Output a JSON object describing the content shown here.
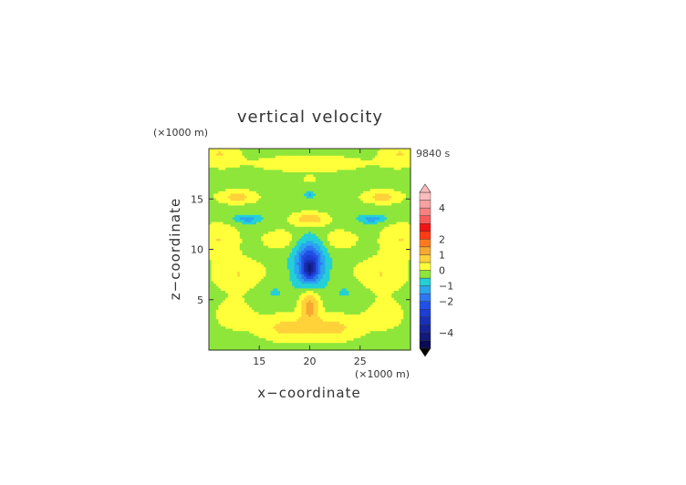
{
  "chart_data": {
    "type": "heatmap",
    "title": "vertical velocity",
    "xlabel": "x−coordinate",
    "ylabel": "z−coordinate",
    "x_unit": "(×1000 m)",
    "y_unit": "(×1000 m)",
    "time_label": "9840 s",
    "xlim": [
      10,
      30
    ],
    "ylim": [
      0,
      20
    ],
    "x_ticks": [
      15,
      20,
      25
    ],
    "y_ticks": [
      5,
      10,
      15
    ],
    "colorbar": {
      "vmin": -5,
      "vmax": 5,
      "ticks": [
        4,
        2,
        1,
        0,
        -1,
        -2,
        -4
      ],
      "levels": [
        {
          "from": -5,
          "to": -4.5,
          "color": "#0a0a55"
        },
        {
          "from": -4.5,
          "to": -4,
          "color": "#111a7a"
        },
        {
          "from": -4,
          "to": -3.5,
          "color": "#15249a"
        },
        {
          "from": -3.5,
          "to": -3,
          "color": "#1830b8"
        },
        {
          "from": -3,
          "to": -2.5,
          "color": "#1c3ed2"
        },
        {
          "from": -2.5,
          "to": -2,
          "color": "#2050e6"
        },
        {
          "from": -2,
          "to": -1.5,
          "color": "#2c78f0"
        },
        {
          "from": -1.5,
          "to": -1,
          "color": "#2aa6ee"
        },
        {
          "from": -1,
          "to": -0.5,
          "color": "#24d0d6"
        },
        {
          "from": -0.5,
          "to": 0,
          "color": "#8ee63a"
        },
        {
          "from": 0,
          "to": 0.5,
          "color": "#ffff3a"
        },
        {
          "from": 0.5,
          "to": 1,
          "color": "#ffd23a"
        },
        {
          "from": 1,
          "to": 1.5,
          "color": "#f6a830"
        },
        {
          "from": 1.5,
          "to": 2,
          "color": "#ff7a1e"
        },
        {
          "from": 2,
          "to": 2.5,
          "color": "#ff3a14"
        },
        {
          "from": 2.5,
          "to": 3,
          "color": "#f01414"
        },
        {
          "from": 3,
          "to": 3.5,
          "color": "#f65a5a"
        },
        {
          "from": 3.5,
          "to": 4,
          "color": "#f88080"
        },
        {
          "from": 4,
          "to": 4.5,
          "color": "#f9a0a0"
        },
        {
          "from": 4.5,
          "to": 5,
          "color": "#fbbcbc"
        }
      ]
    },
    "field": {
      "background": -0.3,
      "features": [
        {
          "x": 20,
          "z": 13.0,
          "sx": 1.3,
          "sz": 0.5,
          "amp": 1.2
        },
        {
          "x": 20,
          "z": 17.0,
          "sx": 0.5,
          "sz": 0.2,
          "amp": 0.7
        },
        {
          "x": 20,
          "z": 15.4,
          "sx": 0.3,
          "sz": 0.2,
          "amp": -0.9
        },
        {
          "x": 12.8,
          "z": 15.2,
          "sx": 1.5,
          "sz": 0.5,
          "amp": 1.0
        },
        {
          "x": 27.2,
          "z": 15.2,
          "sx": 1.5,
          "sz": 0.5,
          "amp": 1.0
        },
        {
          "x": 13.8,
          "z": 13.0,
          "sx": 0.9,
          "sz": 0.3,
          "amp": -1.0
        },
        {
          "x": 26.2,
          "z": 13.0,
          "sx": 0.9,
          "sz": 0.3,
          "amp": -1.0
        },
        {
          "x": 20,
          "z": 8.6,
          "sx": 1.0,
          "sz": 1.5,
          "amp": -2.4
        },
        {
          "x": 20,
          "z": 8.0,
          "sx": 0.4,
          "sz": 0.6,
          "amp": -1.8
        },
        {
          "x": 20,
          "z": 4.5,
          "sx": 0.7,
          "sz": 1.1,
          "amp": 1.5
        },
        {
          "x": 16.2,
          "z": 5.8,
          "sx": 1.2,
          "sz": 0.8,
          "amp": -0.3
        },
        {
          "x": 23.8,
          "z": 5.8,
          "sx": 1.2,
          "sz": 0.8,
          "amp": -0.3
        },
        {
          "x": 17.5,
          "z": 2.2,
          "sx": 2.0,
          "sz": 1.0,
          "amp": 0.9
        },
        {
          "x": 22.5,
          "z": 2.2,
          "sx": 2.0,
          "sz": 1.0,
          "amp": 0.9
        },
        {
          "x": 13.0,
          "z": 7.5,
          "sx": 2.0,
          "sz": 1.2,
          "amp": 0.8
        },
        {
          "x": 27.0,
          "z": 7.5,
          "sx": 2.0,
          "sz": 1.2,
          "amp": 0.8
        },
        {
          "x": 11.0,
          "z": 11.0,
          "sx": 1.5,
          "sz": 1.2,
          "amp": 0.8
        },
        {
          "x": 29.0,
          "z": 11.0,
          "sx": 1.5,
          "sz": 1.2,
          "amp": 0.8
        },
        {
          "x": 17.0,
          "z": 11.0,
          "sx": 1.3,
          "sz": 0.7,
          "amp": 0.7
        },
        {
          "x": 23.0,
          "z": 11.0,
          "sx": 1.3,
          "sz": 0.7,
          "amp": 0.7
        },
        {
          "x": 20,
          "z": 18.5,
          "sx": 4.0,
          "sz": 0.6,
          "amp": 0.8
        },
        {
          "x": 11.0,
          "z": 19.5,
          "sx": 1.5,
          "sz": 1.0,
          "amp": 0.8
        },
        {
          "x": 29.0,
          "z": 19.5,
          "sx": 1.5,
          "sz": 1.0,
          "amp": 0.8
        },
        {
          "x": 12.5,
          "z": 3.5,
          "sx": 1.5,
          "sz": 1.2,
          "amp": 0.6
        },
        {
          "x": 27.5,
          "z": 3.5,
          "sx": 1.5,
          "sz": 1.2,
          "amp": 0.6
        }
      ]
    }
  }
}
